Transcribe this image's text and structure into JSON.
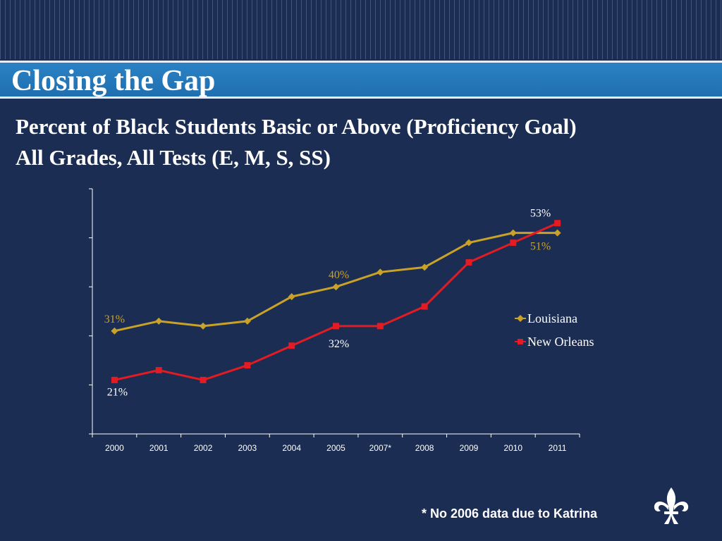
{
  "slide": {
    "title": "Closing the Gap",
    "subtitle_line1": "Percent of Black Students Basic or Above (Proficiency Goal)",
    "subtitle_line2": "All Grades, All Tests (E, M, S, SS)",
    "footnote": "* No 2006 data due to Katrina",
    "logo_icon": "fleur-de-lis-icon"
  },
  "colors": {
    "background": "#1b2d52",
    "title_bar": "#2078bc",
    "louisiana": "#c9a227",
    "new_orleans": "#e31b23",
    "axis": "#ffffff"
  },
  "chart_data": {
    "type": "line",
    "categories": [
      "2000",
      "2001",
      "2002",
      "2003",
      "2004",
      "2005",
      "2007*",
      "2008",
      "2009",
      "2010",
      "2011"
    ],
    "series": [
      {
        "name": "Louisiana",
        "color": "#c9a227",
        "marker": "diamond",
        "values": [
          31,
          33,
          32,
          33,
          38,
          40,
          43,
          44,
          49,
          51,
          51
        ]
      },
      {
        "name": "New Orleans",
        "color": "#e31b23",
        "marker": "square",
        "values": [
          21,
          23,
          21,
          24,
          28,
          32,
          32,
          36,
          45,
          49,
          53
        ]
      }
    ],
    "data_labels": [
      {
        "series": "Louisiana",
        "index": 0,
        "text": "31%"
      },
      {
        "series": "Louisiana",
        "index": 5,
        "text": "40%"
      },
      {
        "series": "Louisiana",
        "index": 10,
        "text": "51%"
      },
      {
        "series": "New Orleans",
        "index": 0,
        "text": "21%"
      },
      {
        "series": "New Orleans",
        "index": 5,
        "text": "32%"
      },
      {
        "series": "New Orleans",
        "index": 10,
        "text": "53%"
      }
    ],
    "ylim": [
      10,
      60
    ],
    "y_ticks": [
      10,
      20,
      30,
      40,
      50,
      60
    ],
    "y_tick_labels_visible": false,
    "legend_position": "right-middle",
    "grid": false,
    "title": "",
    "xlabel": "",
    "ylabel": ""
  }
}
